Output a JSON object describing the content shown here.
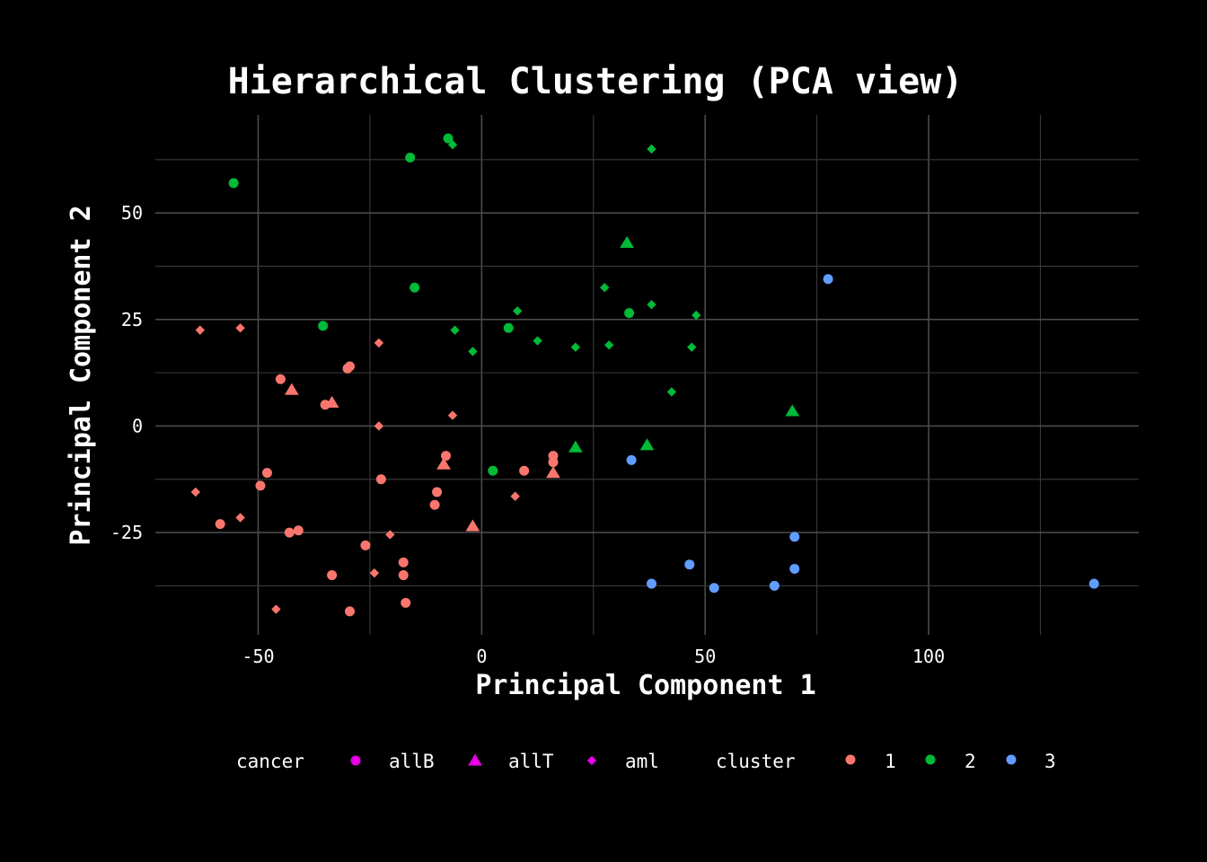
{
  "chart_data": {
    "type": "scatter",
    "title": "Hierarchical Clustering (PCA view)",
    "xlabel": "Principal Component 1",
    "ylabel": "Principal Component 2",
    "xlim": [
      -73,
      147
    ],
    "ylim": [
      -49,
      73
    ],
    "xticks": [
      -50,
      0,
      50,
      100
    ],
    "yticks": [
      -25,
      0,
      25,
      50
    ],
    "grid": true,
    "legend_position": "bottom",
    "legends": [
      {
        "title": "cancer",
        "items": [
          {
            "label": "allB",
            "shape": "circle"
          },
          {
            "label": "allT",
            "shape": "triangle"
          },
          {
            "label": "aml",
            "shape": "diamond"
          }
        ],
        "color": "#e600e6"
      },
      {
        "title": "cluster",
        "items": [
          {
            "label": "1",
            "color": "#f8766d"
          },
          {
            "label": "2",
            "color": "#00ba38"
          },
          {
            "label": "3",
            "color": "#619cff"
          }
        ]
      }
    ],
    "points": [
      {
        "x": -63,
        "y": 22.5,
        "cancer": "aml",
        "cluster": "1"
      },
      {
        "x": -54,
        "y": 23,
        "cancer": "aml",
        "cluster": "1"
      },
      {
        "x": -45,
        "y": 11,
        "cancer": "allB",
        "cluster": "1"
      },
      {
        "x": -42.5,
        "y": 8.5,
        "cancer": "allT",
        "cluster": "1"
      },
      {
        "x": -35,
        "y": 5,
        "cancer": "allB",
        "cluster": "1"
      },
      {
        "x": -33.5,
        "y": 5.5,
        "cancer": "allT",
        "cluster": "1"
      },
      {
        "x": -29.5,
        "y": 14,
        "cancer": "allB",
        "cluster": "1"
      },
      {
        "x": -30,
        "y": 13.5,
        "cancer": "allB",
        "cluster": "1"
      },
      {
        "x": -23,
        "y": 19.5,
        "cancer": "aml",
        "cluster": "1"
      },
      {
        "x": -23,
        "y": 0,
        "cancer": "aml",
        "cluster": "1"
      },
      {
        "x": -6.5,
        "y": 2.5,
        "cancer": "aml",
        "cluster": "1"
      },
      {
        "x": -64,
        "y": -15.5,
        "cancer": "aml",
        "cluster": "1"
      },
      {
        "x": -58.5,
        "y": -23,
        "cancer": "allB",
        "cluster": "1"
      },
      {
        "x": -54,
        "y": -21.5,
        "cancer": "aml",
        "cluster": "1"
      },
      {
        "x": -49.5,
        "y": -14,
        "cancer": "allB",
        "cluster": "1"
      },
      {
        "x": -48,
        "y": -11,
        "cancer": "allB",
        "cluster": "1"
      },
      {
        "x": -43,
        "y": -25,
        "cancer": "allB",
        "cluster": "1"
      },
      {
        "x": -41,
        "y": -24.5,
        "cancer": "allB",
        "cluster": "1"
      },
      {
        "x": -46,
        "y": -43,
        "cancer": "aml",
        "cluster": "1"
      },
      {
        "x": -33.5,
        "y": -35,
        "cancer": "allB",
        "cluster": "1"
      },
      {
        "x": -29.5,
        "y": -43.5,
        "cancer": "allB",
        "cluster": "1"
      },
      {
        "x": -26,
        "y": -28,
        "cancer": "allB",
        "cluster": "1"
      },
      {
        "x": -24,
        "y": -34.5,
        "cancer": "aml",
        "cluster": "1"
      },
      {
        "x": -22.5,
        "y": -12.5,
        "cancer": "allB",
        "cluster": "1"
      },
      {
        "x": -20.5,
        "y": -25.5,
        "cancer": "aml",
        "cluster": "1"
      },
      {
        "x": -17.5,
        "y": -32,
        "cancer": "allB",
        "cluster": "1"
      },
      {
        "x": -17.5,
        "y": -35,
        "cancer": "allB",
        "cluster": "1"
      },
      {
        "x": -17,
        "y": -41.5,
        "cancer": "allB",
        "cluster": "1"
      },
      {
        "x": -10,
        "y": -15.5,
        "cancer": "allB",
        "cluster": "1"
      },
      {
        "x": -10.5,
        "y": -18.5,
        "cancer": "allB",
        "cluster": "1"
      },
      {
        "x": -8.5,
        "y": -9,
        "cancer": "allT",
        "cluster": "1"
      },
      {
        "x": -8,
        "y": -7,
        "cancer": "allB",
        "cluster": "1"
      },
      {
        "x": -2,
        "y": -23.5,
        "cancer": "allT",
        "cluster": "1"
      },
      {
        "x": 7.5,
        "y": -16.5,
        "cancer": "aml",
        "cluster": "1"
      },
      {
        "x": 9.5,
        "y": -10.5,
        "cancer": "allB",
        "cluster": "1"
      },
      {
        "x": 16,
        "y": -7,
        "cancer": "allB",
        "cluster": "1"
      },
      {
        "x": 16,
        "y": -8.5,
        "cancer": "allB",
        "cluster": "1"
      },
      {
        "x": 16,
        "y": -11,
        "cancer": "allT",
        "cluster": "1"
      },
      {
        "x": -55.5,
        "y": 57,
        "cancer": "allB",
        "cluster": "2"
      },
      {
        "x": -35.5,
        "y": 23.5,
        "cancer": "allB",
        "cluster": "2"
      },
      {
        "x": -16,
        "y": 63,
        "cancer": "allB",
        "cluster": "2"
      },
      {
        "x": -15,
        "y": 32.5,
        "cancer": "allB",
        "cluster": "2"
      },
      {
        "x": -7.5,
        "y": 67.5,
        "cancer": "allB",
        "cluster": "2"
      },
      {
        "x": -6.5,
        "y": 66,
        "cancer": "aml",
        "cluster": "2"
      },
      {
        "x": -6,
        "y": 22.5,
        "cancer": "aml",
        "cluster": "2"
      },
      {
        "x": -2,
        "y": 17.5,
        "cancer": "aml",
        "cluster": "2"
      },
      {
        "x": 2.5,
        "y": -10.5,
        "cancer": "allB",
        "cluster": "2"
      },
      {
        "x": 6,
        "y": 23,
        "cancer": "allB",
        "cluster": "2"
      },
      {
        "x": 8,
        "y": 27,
        "cancer": "aml",
        "cluster": "2"
      },
      {
        "x": 12.5,
        "y": 20,
        "cancer": "aml",
        "cluster": "2"
      },
      {
        "x": 21,
        "y": 18.5,
        "cancer": "aml",
        "cluster": "2"
      },
      {
        "x": 21,
        "y": -5,
        "cancer": "allT",
        "cluster": "2"
      },
      {
        "x": 27.5,
        "y": 32.5,
        "cancer": "aml",
        "cluster": "2"
      },
      {
        "x": 28.5,
        "y": 19,
        "cancer": "aml",
        "cluster": "2"
      },
      {
        "x": 32.5,
        "y": 43,
        "cancer": "allT",
        "cluster": "2"
      },
      {
        "x": 33,
        "y": 26.5,
        "cancer": "allB",
        "cluster": "2"
      },
      {
        "x": 37,
        "y": -4.5,
        "cancer": "allT",
        "cluster": "2"
      },
      {
        "x": 38,
        "y": 65,
        "cancer": "aml",
        "cluster": "2"
      },
      {
        "x": 38,
        "y": 28.5,
        "cancer": "aml",
        "cluster": "2"
      },
      {
        "x": 42.5,
        "y": 8,
        "cancer": "aml",
        "cluster": "2"
      },
      {
        "x": 47,
        "y": 18.5,
        "cancer": "aml",
        "cluster": "2"
      },
      {
        "x": 48,
        "y": 26,
        "cancer": "aml",
        "cluster": "2"
      },
      {
        "x": 69.5,
        "y": 3.5,
        "cancer": "allT",
        "cluster": "2"
      },
      {
        "x": 33.5,
        "y": -8,
        "cancer": "allB",
        "cluster": "3"
      },
      {
        "x": 38,
        "y": -37,
        "cancer": "allB",
        "cluster": "3"
      },
      {
        "x": 46.5,
        "y": -32.5,
        "cancer": "allB",
        "cluster": "3"
      },
      {
        "x": 52,
        "y": -38,
        "cancer": "allB",
        "cluster": "3"
      },
      {
        "x": 65.5,
        "y": -37.5,
        "cancer": "allB",
        "cluster": "3"
      },
      {
        "x": 70,
        "y": -26,
        "cancer": "allB",
        "cluster": "3"
      },
      {
        "x": 70,
        "y": -33.5,
        "cancer": "allB",
        "cluster": "3"
      },
      {
        "x": 77.5,
        "y": 34.5,
        "cancer": "allB",
        "cluster": "3"
      },
      {
        "x": 137,
        "y": -37,
        "cancer": "allB",
        "cluster": "3"
      }
    ]
  }
}
